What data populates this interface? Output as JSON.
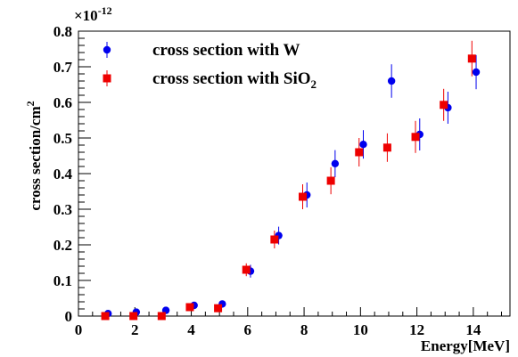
{
  "chart_data": {
    "type": "scatter",
    "title": "",
    "xlabel": "Energy[MeV]",
    "ylabel": "cross section/cm²",
    "ylabel_base": "cross section/cm",
    "ylabel_sup": "2",
    "y_multiplier": "×10",
    "y_multiplier_exp": "-12",
    "xlim": [
      0,
      15.3
    ],
    "ylim": [
      0,
      0.8
    ],
    "x_ticks": [
      0,
      2,
      4,
      6,
      8,
      10,
      12,
      14
    ],
    "x_tick_labels": [
      "0",
      "2",
      "4",
      "6",
      "8",
      "10",
      "12",
      "14"
    ],
    "y_ticks": [
      0,
      0.1,
      0.2,
      0.3,
      0.4,
      0.5,
      0.6,
      0.7,
      0.8
    ],
    "y_tick_labels": [
      "0",
      "0.1",
      "0.2",
      "0.3",
      "0.4",
      "0.5",
      "0.6",
      "0.7",
      "0.8"
    ],
    "grid": false,
    "legend_position": "top-left",
    "series": [
      {
        "name": "cross section with W",
        "name_main": "cross section with W",
        "name_sub": "",
        "marker": "circle",
        "color": "#0000ee",
        "points": [
          {
            "x": 1.05,
            "y": 0.007,
            "err": 0.002
          },
          {
            "x": 2.05,
            "y": 0.011,
            "err": 0.002
          },
          {
            "x": 3.1,
            "y": 0.016,
            "err": 0.003
          },
          {
            "x": 4.1,
            "y": 0.03,
            "err": 0.004
          },
          {
            "x": 5.1,
            "y": 0.034,
            "err": 0.004
          },
          {
            "x": 6.1,
            "y": 0.126,
            "err": 0.018
          },
          {
            "x": 7.1,
            "y": 0.226,
            "err": 0.025
          },
          {
            "x": 8.1,
            "y": 0.34,
            "err": 0.035
          },
          {
            "x": 9.1,
            "y": 0.428,
            "err": 0.038
          },
          {
            "x": 10.1,
            "y": 0.482,
            "err": 0.04
          },
          {
            "x": 11.1,
            "y": 0.66,
            "err": 0.047
          },
          {
            "x": 12.1,
            "y": 0.51,
            "err": 0.045
          },
          {
            "x": 13.1,
            "y": 0.585,
            "err": 0.045
          },
          {
            "x": 14.1,
            "y": 0.685,
            "err": 0.048
          }
        ]
      },
      {
        "name": "cross section with SiO₂",
        "name_main": "cross section with SiO",
        "name_sub": "2",
        "marker": "square",
        "color": "#ee0000",
        "points": [
          {
            "x": 0.95,
            "y": 0.0,
            "err": 0.002
          },
          {
            "x": 1.95,
            "y": 0.0,
            "err": 0.002
          },
          {
            "x": 2.95,
            "y": 0.0,
            "err": 0.002
          },
          {
            "x": 3.95,
            "y": 0.025,
            "err": 0.004
          },
          {
            "x": 4.95,
            "y": 0.022,
            "err": 0.004
          },
          {
            "x": 5.95,
            "y": 0.13,
            "err": 0.018
          },
          {
            "x": 6.95,
            "y": 0.215,
            "err": 0.025
          },
          {
            "x": 7.95,
            "y": 0.335,
            "err": 0.035
          },
          {
            "x": 8.95,
            "y": 0.38,
            "err": 0.038
          },
          {
            "x": 9.95,
            "y": 0.46,
            "err": 0.04
          },
          {
            "x": 10.95,
            "y": 0.473,
            "err": 0.04
          },
          {
            "x": 11.95,
            "y": 0.503,
            "err": 0.045
          },
          {
            "x": 12.95,
            "y": 0.593,
            "err": 0.045
          },
          {
            "x": 13.95,
            "y": 0.723,
            "err": 0.05
          }
        ]
      }
    ]
  }
}
